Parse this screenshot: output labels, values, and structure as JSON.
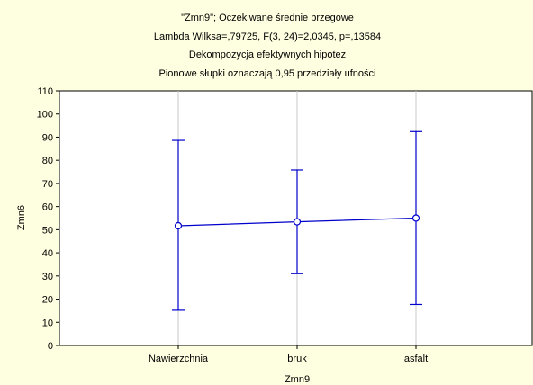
{
  "chart_data": {
    "type": "line",
    "title_lines": [
      "\"Zmn9\"; Oczekiwane średnie brzegowe",
      "Lambda Wilksa=,79725, F(3, 24)=2,0345, p=,13584",
      "Dekompozycja efektywnych hipotez",
      "Pionowe słupki oznaczają 0,95 przedziały ufności"
    ],
    "xlabel": "Zmn9",
    "ylabel": "Zmn6",
    "categories": [
      "Nawierzchnia",
      "bruk",
      "asfalt"
    ],
    "series": [
      {
        "values": [
          51.7,
          53.4,
          55.0
        ],
        "ci_lower": [
          15.2,
          31.0,
          17.7
        ],
        "ci_upper": [
          88.6,
          75.8,
          92.4
        ]
      }
    ],
    "ylim": [
      0,
      110
    ],
    "yticks": [
      0,
      10,
      20,
      30,
      40,
      50,
      60,
      70,
      80,
      90,
      100,
      110
    ],
    "grid": "vertical",
    "colors": {
      "background": "#fefee0",
      "plot_background": "#ffffff",
      "series": "#0000cc",
      "grid": "#c8c8c8",
      "axis": "#000000"
    }
  }
}
